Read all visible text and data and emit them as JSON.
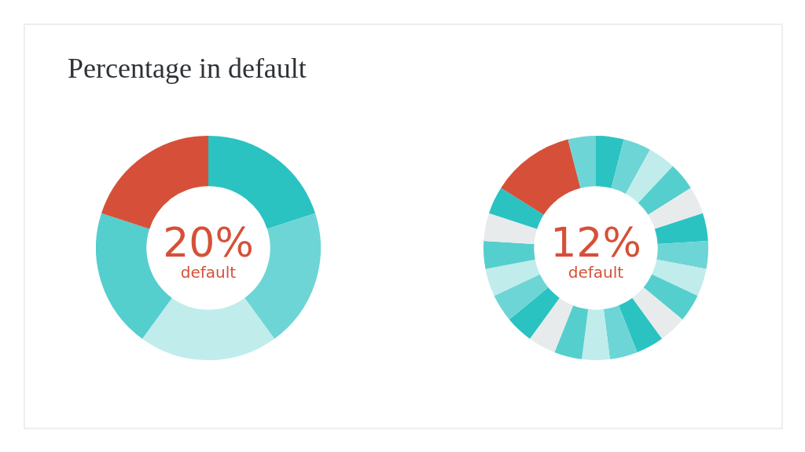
{
  "chart_data": [
    {
      "type": "donut",
      "title": "Percentage in default",
      "annotations": [
        "20%",
        "default"
      ],
      "categories": [
        null,
        null,
        null,
        null,
        null
      ],
      "values": [
        20,
        20,
        20,
        20,
        20
      ],
      "colors": [
        "#2bc2c2",
        "#6dd5d5",
        "#c0ecec",
        "#55cece",
        "#d65039"
      ],
      "legend": false
    },
    {
      "type": "donut",
      "annotations": [
        "12%",
        "default"
      ],
      "categories": [
        null,
        null,
        null,
        null,
        null,
        null,
        null,
        null,
        null,
        null,
        null,
        null,
        null,
        null,
        null,
        null,
        null,
        null,
        null,
        null,
        null,
        null,
        null
      ],
      "values": [
        4,
        4,
        4,
        4,
        4,
        4,
        4,
        4,
        4,
        4,
        4,
        4,
        4,
        4,
        4,
        4,
        4,
        4,
        4,
        4,
        4,
        12,
        4
      ],
      "colors": [
        "#2bc2c2",
        "#6dd5d5",
        "#c0ecec",
        "#55cece",
        "#e8ebeb",
        "#2bc2c2",
        "#6dd5d5",
        "#c0ecec",
        "#55cece",
        "#e8ebeb",
        "#2bc2c2",
        "#6dd5d5",
        "#c0ecec",
        "#55cece",
        "#e8ebeb",
        "#2bc2c2",
        "#6dd5d5",
        "#c0ecec",
        "#55cece",
        "#e8ebeb",
        "#2bc2c2",
        "#d65039",
        "#6dd5d5"
      ],
      "legend": false
    }
  ]
}
